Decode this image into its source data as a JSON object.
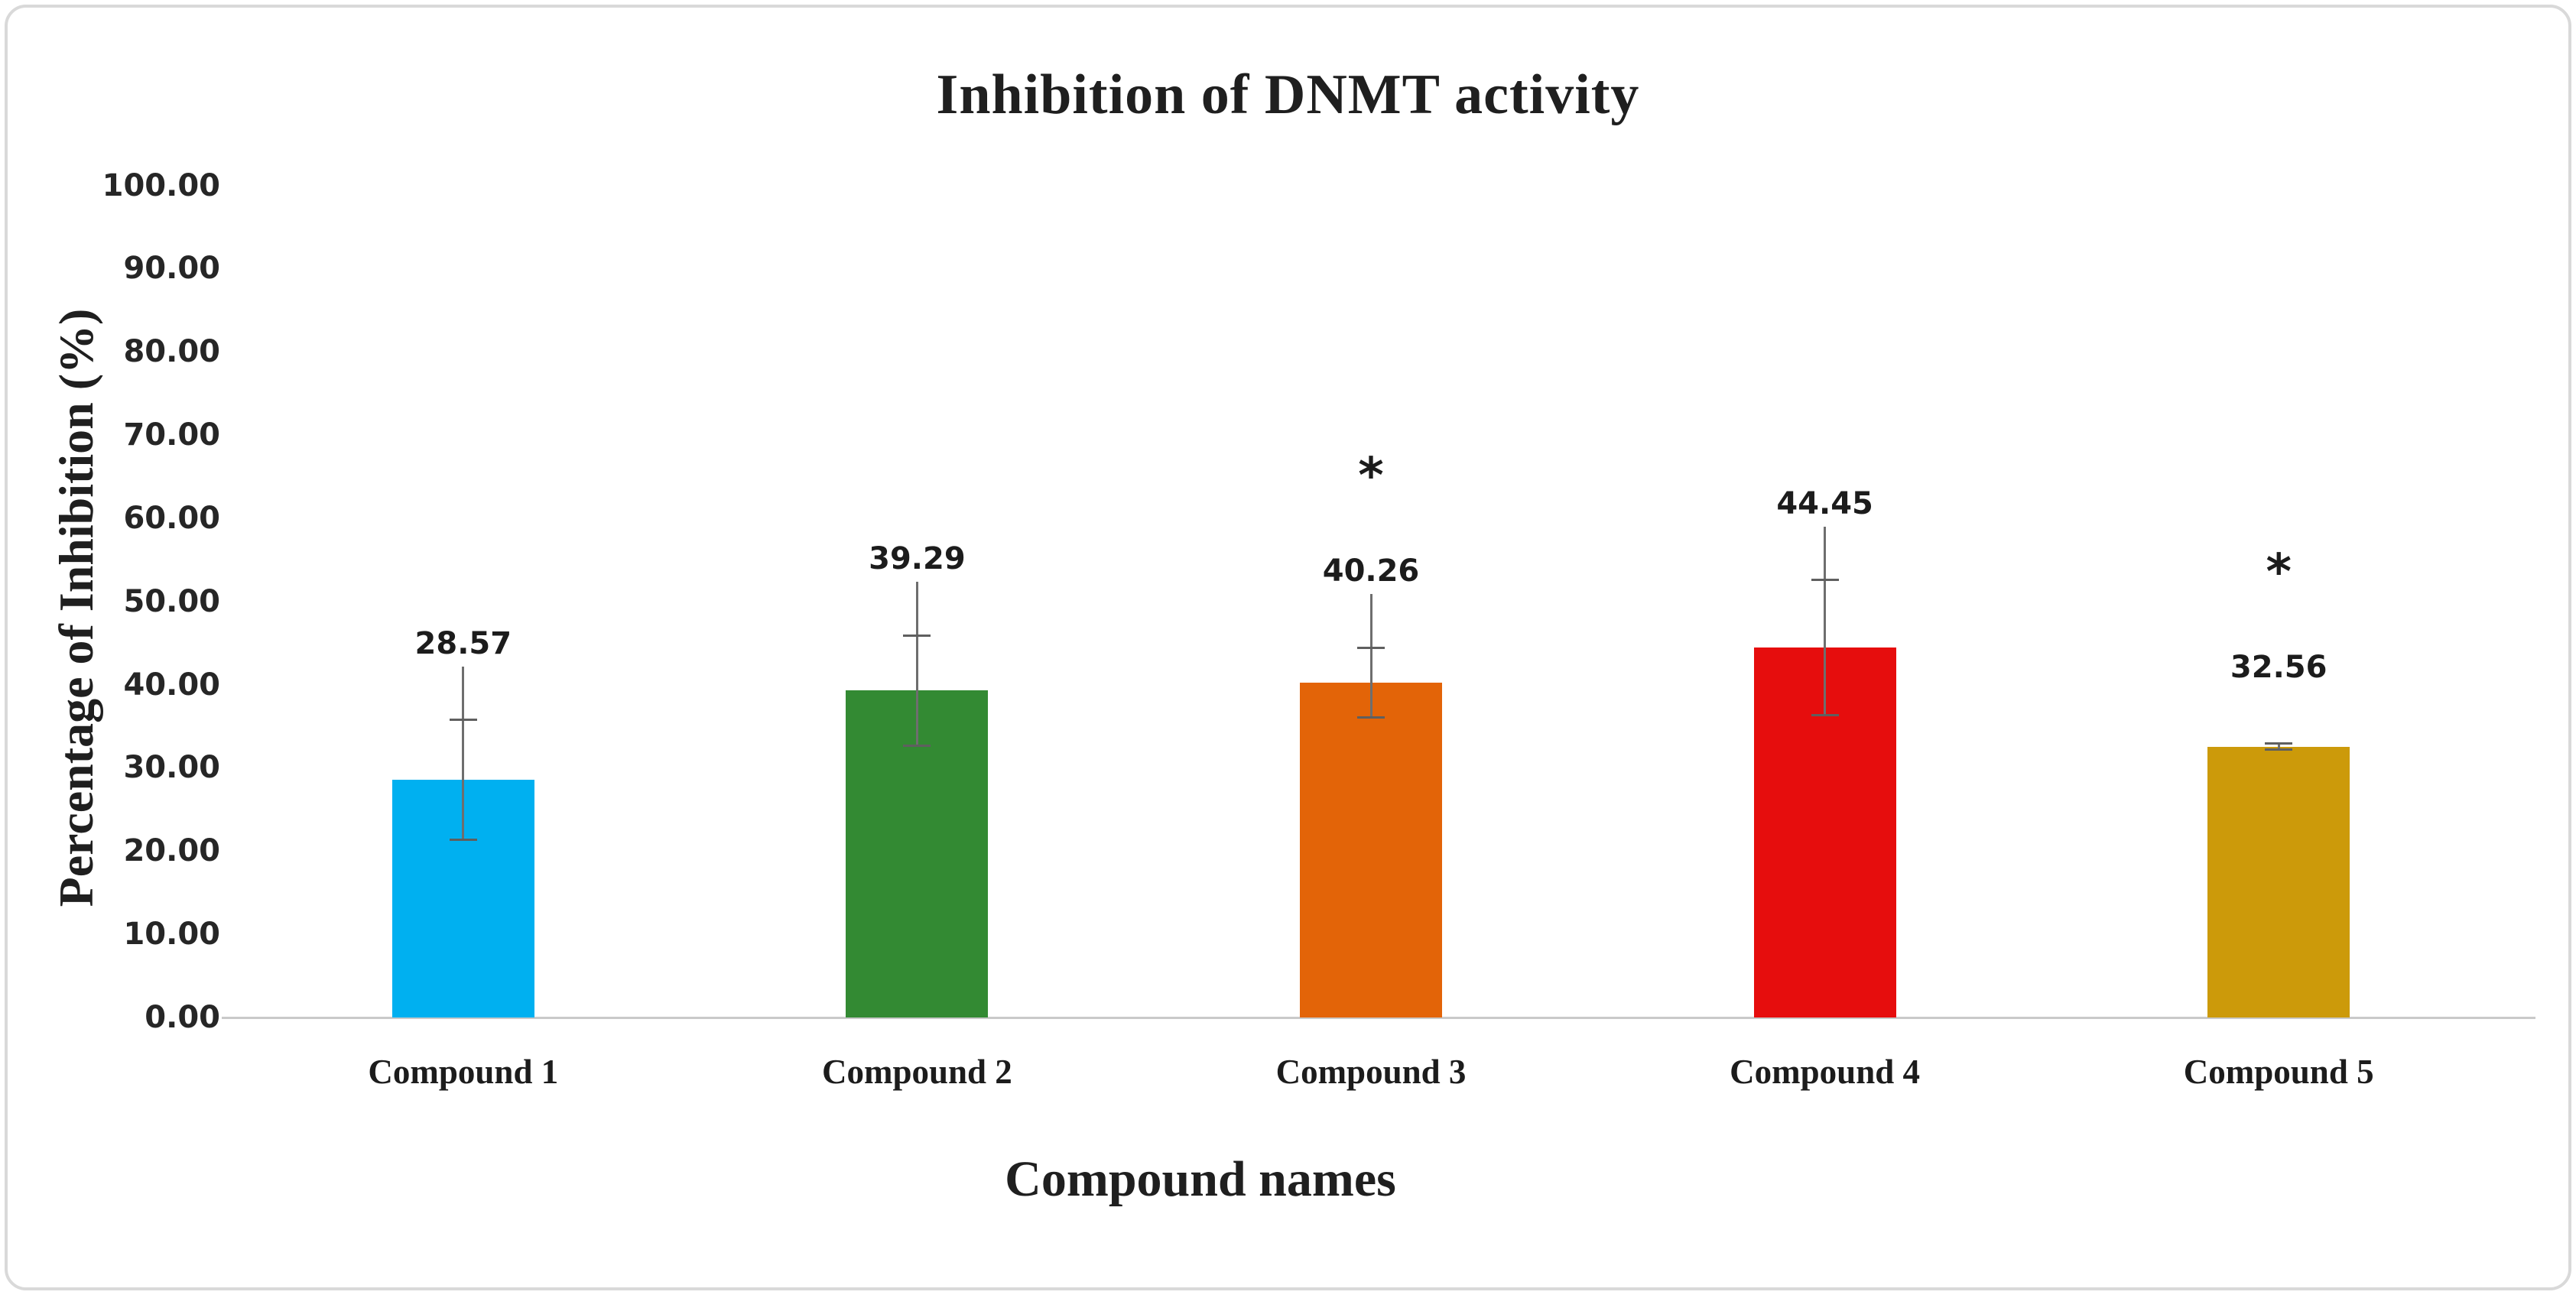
{
  "figure": {
    "background_color": "#ffffff",
    "border_color": "#d9d9d9",
    "text_color": "#1f1f1f",
    "axis_line_color": "#c9c9c9",
    "error_bar_color": "#6e6e6e"
  },
  "chart_data": {
    "type": "bar",
    "title": "Inhibition of DNMT activity",
    "xlabel": "Compound names",
    "ylabel": "Percentage of Inhibition (%)",
    "categories": [
      "Compound 1",
      "Compound 2",
      "Compound 3",
      "Compound 4",
      "Compound 5"
    ],
    "values": [
      28.57,
      39.29,
      40.26,
      44.45,
      32.56
    ],
    "data_labels": [
      "28.57",
      "39.29",
      "40.26",
      "44.45",
      "32.56"
    ],
    "errors": [
      7.2,
      6.6,
      4.2,
      8.1,
      0.35
    ],
    "annotations": [
      "",
      "",
      "*",
      "",
      "*"
    ],
    "leader_lines": [
      true,
      true,
      true,
      true,
      false
    ],
    "bar_colors": [
      "#00b0f0",
      "#338a33",
      "#e36408",
      "#e60d0d",
      "#cc9a0a"
    ],
    "ylim": [
      0,
      100
    ],
    "ytick_step": 10,
    "ytick_labels": [
      "0.00",
      "10.00",
      "20.00",
      "30.00",
      "40.00",
      "50.00",
      "60.00",
      "70.00",
      "80.00",
      "90.00",
      "100.00"
    ],
    "grid": false,
    "legend": "none"
  }
}
